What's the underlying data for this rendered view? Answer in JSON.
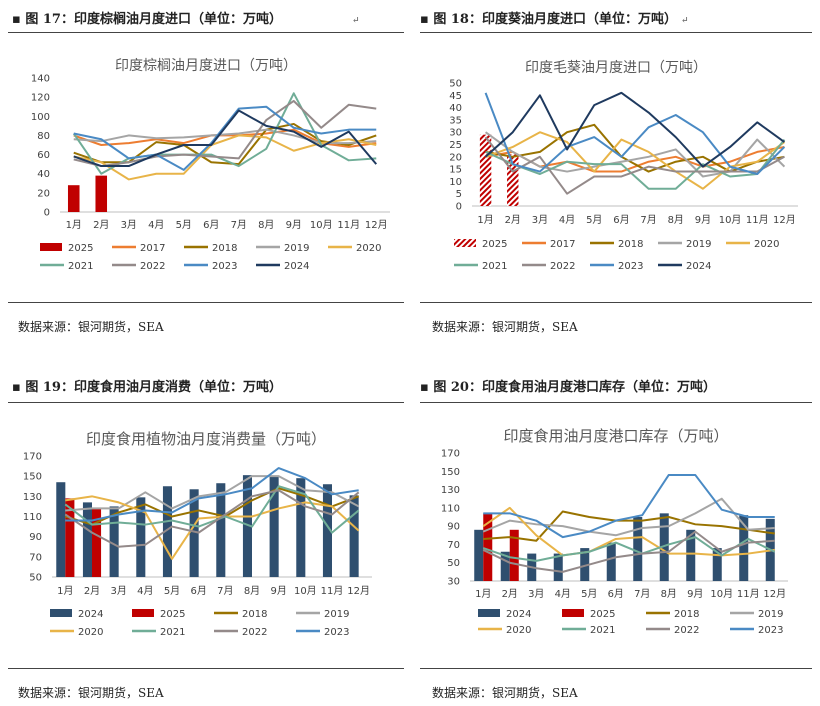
{
  "figures": [
    {
      "caption": "图 17：印度棕榈油月度进口（单位：万吨）",
      "source": "数据来源：银河期货，SEA",
      "chart_data": {
        "type": "bar+line",
        "title": "印度棕榈油月度进口（万吨）",
        "categories": [
          "1月",
          "2月",
          "3月",
          "4月",
          "5月",
          "6月",
          "7月",
          "8月",
          "9月",
          "10月",
          "11月",
          "12月"
        ],
        "ylim": [
          0,
          140
        ],
        "yticks": [
          0,
          20,
          40,
          60,
          80,
          100,
          120,
          140
        ],
        "legend_position": "bottom",
        "bars": [
          {
            "name": "2025",
            "color": "#c00000",
            "values": [
              28,
              38
            ]
          }
        ],
        "lines": [
          {
            "name": "2017",
            "color": "#ed7d31",
            "values": [
              80,
              70,
              72,
              76,
              72,
              80,
              80,
              82,
              86,
              72,
              68,
              72
            ]
          },
          {
            "name": "2018",
            "color": "#997300",
            "values": [
              62,
              52,
              52,
              73,
              70,
              52,
              50,
              86,
              92,
              74,
              70,
              80
            ]
          },
          {
            "name": "2019",
            "color": "#a5a5a5",
            "values": [
              76,
              74,
              80,
              77,
              78,
              80,
              82,
              86,
              80,
              72,
              72,
              74
            ]
          },
          {
            "name": "2020",
            "color": "#e8b448",
            "values": [
              58,
              52,
              34,
              40,
              40,
              70,
              80,
              78,
              64,
              72,
              76,
              70
            ]
          },
          {
            "name": "2021",
            "color": "#70ad97",
            "values": [
              82,
              40,
              56,
              60,
              60,
              60,
              48,
              66,
              124,
              70,
              54,
              56
            ]
          },
          {
            "name": "2022",
            "color": "#948a8a",
            "values": [
              55,
              48,
              52,
              58,
              60,
              58,
              56,
              96,
              116,
              88,
              112,
              108
            ]
          },
          {
            "name": "2023",
            "color": "#4a8ac4",
            "values": [
              82,
              76,
              56,
              60,
              44,
              72,
              108,
              110,
              88,
              82,
              86,
              86
            ]
          },
          {
            "name": "2024",
            "color": "#1f3a5f",
            "values": [
              58,
              48,
              48,
              60,
              70,
              70,
              106,
              90,
              84,
              68,
              84,
              50
            ]
          }
        ]
      }
    },
    {
      "caption": "图 18：印度葵油月度进口（单位：万吨）",
      "source": "数据来源：银河期货，SEA",
      "chart_data": {
        "type": "bar+line",
        "title": "印度毛葵油月度进口（万吨）",
        "categories": [
          "1月",
          "2月",
          "3月",
          "4月",
          "5月",
          "6月",
          "7月",
          "8月",
          "9月",
          "10月",
          "11月",
          "12月"
        ],
        "ylim": [
          0,
          50
        ],
        "yticks": [
          0,
          5,
          10,
          15,
          20,
          25,
          30,
          35,
          40,
          45,
          50
        ],
        "legend_position": "bottom",
        "bars": [
          {
            "name": "2025",
            "color": "#c00000",
            "hatched": true,
            "values": [
              29,
              21
            ]
          }
        ],
        "lines": [
          {
            "name": "2017",
            "color": "#ed7d31",
            "values": [
              20,
              22,
              16,
              18,
              14,
              14,
              18,
              20,
              16,
              18,
              22,
              24
            ]
          },
          {
            "name": "2018",
            "color": "#997300",
            "values": [
              22,
              20,
              22,
              30,
              33,
              20,
              14,
              18,
              20,
              14,
              18,
              20
            ]
          },
          {
            "name": "2019",
            "color": "#a5a5a5",
            "values": [
              30,
              22,
              16,
              14,
              16,
              18,
              20,
              23,
              12,
              14,
              27,
              16
            ]
          },
          {
            "name": "2020",
            "color": "#e8b448",
            "values": [
              20,
              24,
              30,
              26,
              14,
              27,
              22,
              14,
              7,
              16,
              18,
              26
            ]
          },
          {
            "name": "2021",
            "color": "#70ad97",
            "values": [
              22,
              17,
              13,
              18,
              17,
              17,
              7,
              7,
              17,
              12,
              13,
              27
            ]
          },
          {
            "name": "2022",
            "color": "#948a8a",
            "values": [
              28,
              14,
              20,
              5,
              12,
              12,
              16,
              14,
              14,
              14,
              14,
              20
            ]
          },
          {
            "name": "2023",
            "color": "#4a8ac4",
            "values": [
              46,
              17,
              14,
              24,
              28,
              20,
              32,
              37,
              30,
              16,
              13,
              24
            ]
          },
          {
            "name": "2024",
            "color": "#1f3a5f",
            "values": [
              20,
              30,
              45,
              23,
              41,
              46,
              38,
              28,
              16,
              24,
              34,
              26
            ]
          }
        ]
      }
    },
    {
      "caption": "图 19：印度食用油月度消费（单位：万吨）",
      "source": "数据来源：银河期货，SEA",
      "chart_data": {
        "type": "bar+line",
        "title": "印度食用植物油月度消费量（万吨）",
        "categories": [
          "1月",
          "2月",
          "3月",
          "4月",
          "5月",
          "6月",
          "7月",
          "8月",
          "9月",
          "10月",
          "11月",
          "12月"
        ],
        "ylim": [
          50,
          170
        ],
        "yticks": [
          50,
          70,
          90,
          110,
          130,
          150,
          170
        ],
        "legend_position": "bottom",
        "bars": [
          {
            "name": "2024",
            "color": "#2f4f6f",
            "values": [
              144,
              124,
              120,
              129,
              140,
              137,
              143,
              151,
              150,
              148,
              142,
              131
            ]
          },
          {
            "name": "2025",
            "color": "#c00000",
            "values": [
              128,
              118
            ]
          }
        ],
        "lines": [
          {
            "name": "2018",
            "color": "#997300",
            "values": [
              110,
              102,
              114,
              122,
              110,
              116,
              110,
              126,
              138,
              130,
              120,
              130
            ]
          },
          {
            "name": "2019",
            "color": "#a5a5a5",
            "values": [
              116,
              118,
              118,
              134,
              118,
              130,
              134,
              150,
              150,
              136,
              134,
              120
            ]
          },
          {
            "name": "2020",
            "color": "#e8b448",
            "values": [
              126,
              130,
              124,
              114,
              68,
              108,
              110,
              110,
              118,
              124,
              120,
              96
            ]
          },
          {
            "name": "2021",
            "color": "#70ad97",
            "values": [
              122,
              102,
              104,
              102,
              106,
              100,
              110,
              100,
              140,
              132,
              94,
              116
            ]
          },
          {
            "name": "2022",
            "color": "#948a8a",
            "values": [
              112,
              94,
              80,
              82,
              100,
              94,
              112,
              130,
              136,
              120,
              112,
              134
            ]
          },
          {
            "name": "2023",
            "color": "#4a8ac4",
            "values": [
              106,
              106,
              112,
              116,
              114,
              128,
              132,
              138,
              158,
              148,
              132,
              136
            ]
          }
        ]
      }
    },
    {
      "caption": "图 20：印度食用油月度港口库存（单位：万吨）",
      "source": "数据来源：银河期货，SEA",
      "chart_data": {
        "type": "bar+line",
        "title": "印度食用油月度港口库存（万吨）",
        "categories": [
          "1月",
          "2月",
          "3月",
          "4月",
          "5月",
          "6月",
          "7月",
          "8月",
          "9月",
          "10月",
          "11月",
          "12月"
        ],
        "ylim": [
          30,
          170
        ],
        "yticks": [
          30,
          50,
          70,
          90,
          110,
          130,
          150,
          170
        ],
        "legend_position": "bottom",
        "bars": [
          {
            "name": "2024",
            "color": "#2f4f6f",
            "values": [
              86,
              62,
              60,
              60,
              66,
              72,
              100,
              104,
              86,
              66,
              102,
              98
            ]
          },
          {
            "name": "2025",
            "color": "#c00000",
            "values": [
              104,
              86
            ]
          }
        ],
        "lines": [
          {
            "name": "2018",
            "color": "#997300",
            "values": [
              76,
              78,
              74,
              106,
              100,
              96,
              96,
              100,
              92,
              90,
              86,
              82
            ]
          },
          {
            "name": "2019",
            "color": "#a5a5a5",
            "values": [
              84,
              96,
              92,
              90,
              84,
              80,
              88,
              90,
              104,
              120,
              86,
              88
            ]
          },
          {
            "name": "2020",
            "color": "#e8b448",
            "values": [
              90,
              110,
              80,
              58,
              62,
              76,
              78,
              60,
              60,
              58,
              60,
              64
            ]
          },
          {
            "name": "2021",
            "color": "#70ad97",
            "values": [
              66,
              56,
              52,
              58,
              62,
              72,
              60,
              70,
              78,
              58,
              76,
              62
            ]
          },
          {
            "name": "2022",
            "color": "#948a8a",
            "values": [
              64,
              50,
              44,
              40,
              48,
              56,
              60,
              62,
              84,
              62,
              72,
              74
            ]
          },
          {
            "name": "2023",
            "color": "#4a8ac4",
            "values": [
              104,
              104,
              96,
              78,
              84,
              96,
              102,
              146,
              146,
              108,
              100,
              100
            ]
          }
        ]
      }
    }
  ]
}
